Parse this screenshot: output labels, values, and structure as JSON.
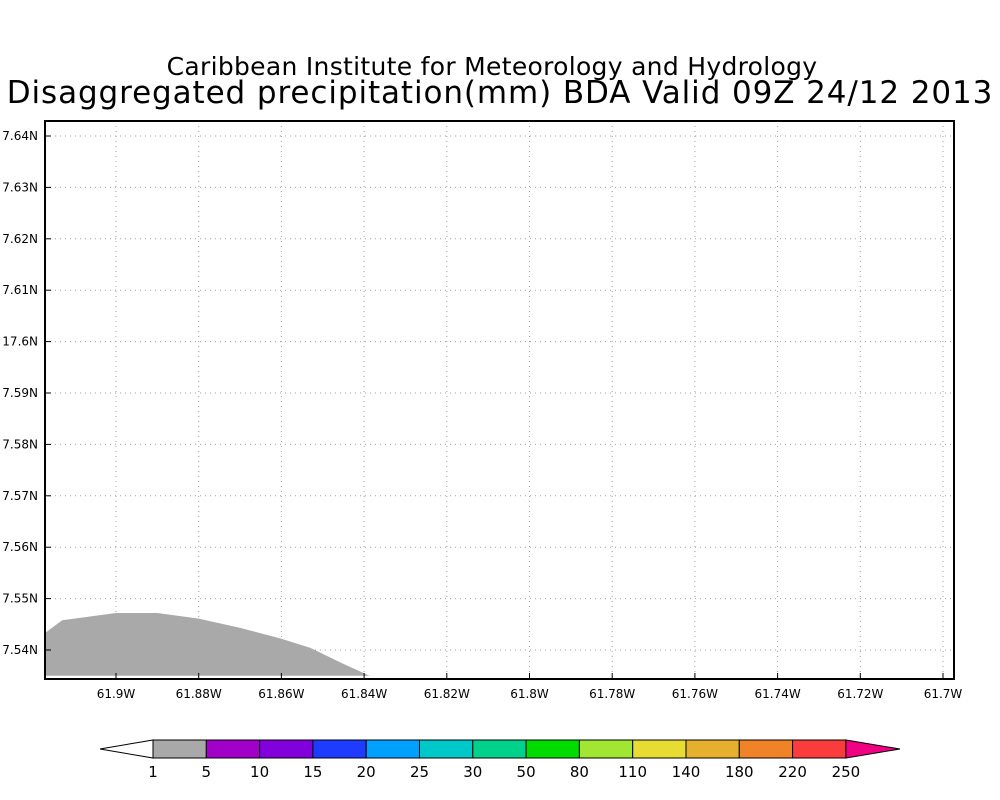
{
  "titles": {
    "line1": "Caribbean Institute for Meteorology and Hydrology",
    "line2": "Disaggregated precipitation(mm) BDA Valid 09Z 24/12 2013"
  },
  "map": {
    "lon_ticks": [
      "61.9W",
      "61.88W",
      "61.86W",
      "61.84W",
      "61.82W",
      "61.8W",
      "61.78W",
      "61.76W",
      "61.74W",
      "61.72W",
      "61.7W"
    ],
    "lat_ticks": [
      "7.64N",
      "7.63N",
      "7.62N",
      "7.61N",
      "17.6N",
      "7.59N",
      "7.58N",
      "7.57N",
      "7.56N",
      "7.55N",
      "7.54N"
    ],
    "grid": "dotted",
    "land_color": "#a9a9a9",
    "region_shape": [
      [
        -61.917,
        17.5434
      ],
      [
        -61.913,
        17.5458
      ],
      [
        -61.9,
        17.5472
      ],
      [
        -61.89,
        17.5472
      ],
      [
        -61.88,
        17.5461
      ],
      [
        -61.87,
        17.5443
      ],
      [
        -61.86,
        17.5422
      ],
      [
        -61.853,
        17.5404
      ],
      [
        -61.845,
        17.5373
      ],
      [
        -61.8387,
        17.535
      ],
      [
        -61.917,
        17.535
      ]
    ]
  },
  "colorbar": {
    "labels": [
      "1",
      "5",
      "10",
      "15",
      "20",
      "25",
      "30",
      "50",
      "80",
      "110",
      "140",
      "180",
      "220",
      "250"
    ],
    "colors": [
      "#ffffff",
      "#a9a9a9",
      "#a000c8",
      "#8200dc",
      "#1e3cff",
      "#00a0ff",
      "#00c8c8",
      "#00d28c",
      "#00dc00",
      "#a0e632",
      "#e6dc32",
      "#e6af2d",
      "#f08228",
      "#fa3c3c",
      "#f00082"
    ]
  }
}
